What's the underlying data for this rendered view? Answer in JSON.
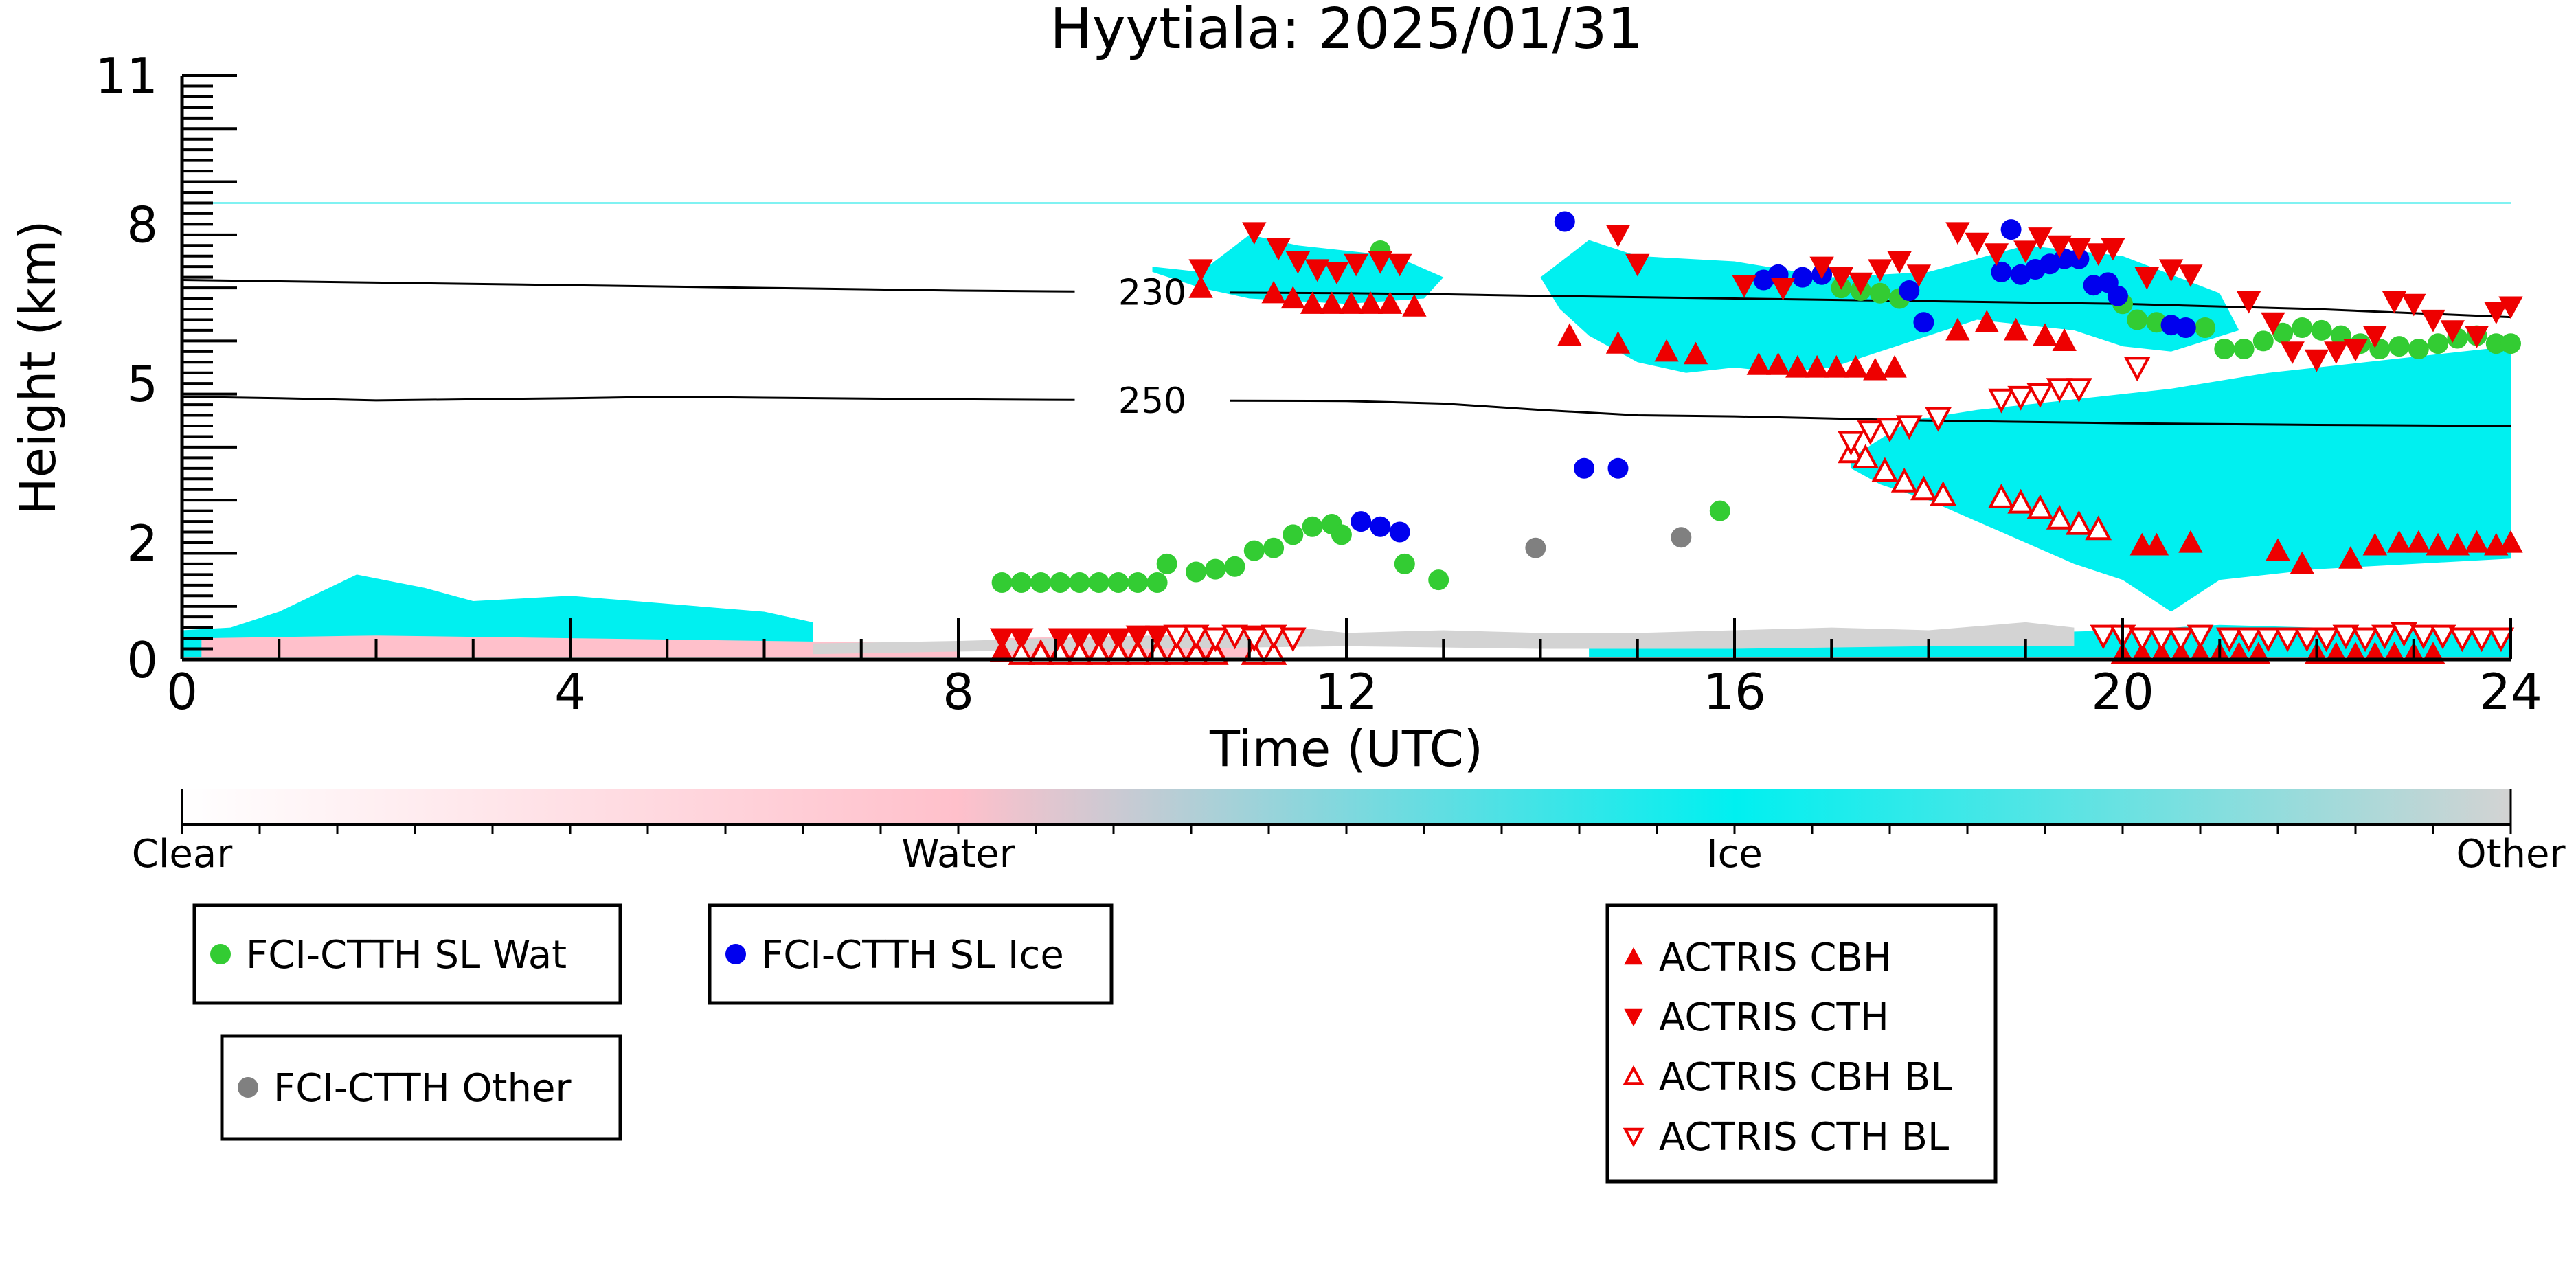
{
  "chart_data": {
    "type": "scatter",
    "title": "Hyytiala: 2025/01/31",
    "xlabel": "Time (UTC)",
    "ylabel": "Height (km)",
    "xlim": [
      0,
      24
    ],
    "ylim": [
      0,
      11
    ],
    "x_ticks": [
      0,
      4,
      8,
      12,
      16,
      20,
      24
    ],
    "y_tick_labels": [
      "0",
      "2",
      "5",
      "8",
      "11"
    ],
    "grid": false,
    "colors": {
      "wat": "#33cc33",
      "ice": "#0000ee",
      "other": "#808080",
      "actris": "#ee0000",
      "cloud_ice": "#00f0f0",
      "cloud_water": "#ffc0cb",
      "cloud_other": "#d3d3d3",
      "tropopause": "#00e5e5"
    },
    "tropopause_km": 8.6,
    "contours": [
      {
        "label": "230",
        "x": [
          0,
          2,
          4,
          6,
          8,
          10,
          12,
          13,
          14,
          16,
          18,
          20,
          22,
          24
        ],
        "y": [
          7.15,
          7.1,
          7.05,
          7.0,
          6.95,
          6.92,
          6.9,
          6.88,
          6.85,
          6.8,
          6.75,
          6.7,
          6.6,
          6.45
        ]
      },
      {
        "label": "250",
        "x": [
          0,
          1,
          2,
          4,
          5,
          6,
          8,
          10,
          12,
          13,
          14,
          15,
          16,
          18,
          20,
          22,
          24
        ],
        "y": [
          4.95,
          4.92,
          4.88,
          4.92,
          4.95,
          4.93,
          4.9,
          4.88,
          4.87,
          4.82,
          4.7,
          4.6,
          4.58,
          4.5,
          4.45,
          4.42,
          4.4
        ]
      }
    ],
    "cloud_classes": [
      "Clear",
      "Water",
      "Ice",
      "Other"
    ],
    "cloud_regions": [
      {
        "class": "Ice",
        "x": [
          0,
          0.5,
          1.0,
          1.8,
          2.5,
          3.0,
          4.0,
          5.0,
          6.0,
          6.5,
          6.5,
          6.0,
          5.0,
          4.0,
          3.0,
          2.0,
          1.0,
          0.5,
          0
        ],
        "y": [
          0.55,
          0.6,
          0.9,
          1.6,
          1.35,
          1.1,
          1.2,
          1.05,
          0.9,
          0.7,
          0.05,
          0.05,
          0.05,
          0.05,
          0.05,
          0.05,
          0.05,
          0.05,
          0.05
        ]
      },
      {
        "class": "Ice",
        "x": [
          10.0,
          10.5,
          11.0,
          11.5,
          12.0,
          12.5,
          13.0,
          12.8,
          12.0,
          11.0,
          10.5,
          10.0
        ],
        "y": [
          7.4,
          7.3,
          8.0,
          7.8,
          7.7,
          7.6,
          7.2,
          6.8,
          6.7,
          6.8,
          7.0,
          7.3
        ]
      },
      {
        "class": "Ice",
        "x": [
          14.0,
          14.5,
          15.0,
          16.0,
          17.0,
          18.0,
          19.0,
          20.0,
          21.0,
          21.2,
          20.5,
          20.0,
          19.5,
          19.0,
          18.5,
          18.0,
          17.5,
          17.0,
          16.5,
          16.0,
          15.5,
          15.0,
          14.5,
          14.2
        ],
        "y": [
          7.2,
          7.9,
          7.6,
          7.5,
          7.2,
          7.3,
          7.8,
          7.6,
          6.9,
          6.2,
          5.8,
          5.9,
          6.2,
          6.3,
          6.4,
          6.1,
          5.8,
          5.5,
          5.4,
          5.5,
          5.4,
          5.6,
          6.1,
          6.6
        ]
      },
      {
        "class": "Ice",
        "x": [
          17.2,
          17.8,
          18.5,
          19.5,
          20.5,
          21.5,
          22.5,
          23.5,
          24,
          24,
          23.0,
          22.0,
          21.5,
          21.0,
          20.5,
          20.0,
          19.5,
          19.0,
          18.5,
          18.0,
          17.5,
          17.2
        ],
        "y": [
          3.8,
          4.5,
          4.7,
          4.9,
          5.1,
          5.4,
          5.6,
          5.8,
          5.9,
          1.9,
          1.8,
          1.7,
          1.6,
          1.5,
          0.9,
          1.5,
          1.8,
          2.2,
          2.6,
          3.0,
          3.3,
          3.6
        ]
      },
      {
        "class": "Ice",
        "x": [
          14.5,
          16.0,
          18.0,
          20.0,
          21.0,
          22.0,
          24,
          24,
          22.0,
          20.0,
          18.0,
          16.0,
          14.5
        ],
        "y": [
          0.25,
          0.3,
          0.45,
          0.55,
          0.65,
          0.6,
          0.55,
          0.05,
          0.05,
          0.05,
          0.05,
          0.05,
          0.05
        ]
      },
      {
        "class": "Water",
        "x": [
          0.2,
          2.0,
          4.0,
          6.0,
          8.0,
          8.0,
          6.0,
          4.0,
          2.0,
          0.2
        ],
        "y": [
          0.4,
          0.45,
          0.4,
          0.35,
          0.3,
          0.05,
          0.05,
          0.05,
          0.05,
          0.05
        ]
      },
      {
        "class": "Water",
        "x": [
          8.4,
          10.0,
          11.0,
          11.0,
          10.0,
          8.4
        ],
        "y": [
          0.4,
          0.45,
          0.4,
          0.05,
          0.05,
          0.05
        ]
      },
      {
        "class": "Other",
        "x": [
          6.5,
          8.0,
          10.0,
          11.5,
          12.0,
          13.0,
          14.0,
          15.0,
          16.0,
          17.0,
          18.0,
          19.0,
          19.5,
          19.5,
          18.0,
          16.0,
          14.0,
          12.0,
          10.0,
          8.0,
          6.5
        ],
        "y": [
          0.3,
          0.35,
          0.45,
          0.6,
          0.5,
          0.55,
          0.5,
          0.5,
          0.55,
          0.6,
          0.55,
          0.7,
          0.6,
          0.25,
          0.25,
          0.2,
          0.2,
          0.25,
          0.2,
          0.15,
          0.1
        ]
      }
    ],
    "series": [
      {
        "name": "FCI-CTTH SL Wat",
        "marker": "circle-filled",
        "color": "#33cc33",
        "x": [
          8.45,
          8.65,
          8.85,
          9.05,
          9.25,
          9.45,
          9.65,
          9.85,
          10.05,
          10.15,
          10.45,
          10.65,
          10.85,
          11.05,
          11.25,
          11.45,
          11.65,
          11.85,
          11.95,
          12.35,
          12.6,
          12.95,
          15.85,
          17.1,
          17.3,
          17.5,
          17.7,
          20.0,
          20.15,
          20.35,
          20.85,
          21.05,
          21.25,
          21.45,
          21.65,
          21.85,
          22.05,
          22.25,
          22.45,
          22.65,
          22.85,
          23.05,
          23.25,
          23.45,
          23.65,
          23.85,
          24.0
        ],
        "y": [
          1.45,
          1.45,
          1.45,
          1.45,
          1.45,
          1.45,
          1.45,
          1.45,
          1.45,
          1.8,
          1.65,
          1.7,
          1.75,
          2.05,
          2.1,
          2.35,
          2.5,
          2.55,
          2.35,
          7.7,
          1.8,
          1.5,
          2.8,
          7.0,
          6.95,
          6.9,
          6.8,
          6.7,
          6.4,
          6.35,
          6.25,
          5.85,
          5.85,
          6.0,
          6.15,
          6.25,
          6.2,
          6.1,
          5.95,
          5.85,
          5.9,
          5.85,
          5.95,
          6.05,
          6.1,
          5.95,
          5.95
        ]
      },
      {
        "name": "FCI-CTTH SL Ice",
        "marker": "circle-filled",
        "color": "#0000ee",
        "x": [
          12.15,
          12.35,
          12.55,
          14.25,
          14.45,
          14.8,
          16.3,
          16.45,
          16.7,
          16.9,
          17.8,
          17.95,
          18.75,
          18.85,
          18.95,
          19.1,
          19.25,
          19.4,
          19.55,
          19.7,
          19.85,
          19.95,
          20.5,
          20.65
        ],
        "y": [
          2.6,
          2.5,
          2.4,
          8.25,
          3.6,
          3.6,
          7.15,
          7.25,
          7.2,
          7.25,
          6.95,
          6.35,
          7.3,
          8.1,
          7.25,
          7.35,
          7.45,
          7.55,
          7.55,
          7.05,
          7.1,
          6.85,
          6.3,
          6.25
        ]
      },
      {
        "name": "FCI-CTTH Other",
        "marker": "circle-filled",
        "color": "#808080",
        "x": [
          13.95,
          15.45
        ],
        "y": [
          2.1,
          2.3
        ]
      },
      {
        "name": "ACTRIS CBH",
        "marker": "triangle-up-filled",
        "color": "#ee0000",
        "x": [
          10.5,
          11.25,
          11.45,
          11.65,
          11.85,
          12.05,
          12.25,
          12.45,
          12.7,
          14.3,
          14.8,
          15.3,
          15.6,
          16.25,
          16.45,
          16.65,
          16.85,
          17.05,
          17.25,
          17.45,
          17.65,
          18.3,
          18.6,
          18.9,
          19.2,
          19.4,
          20.2,
          20.35,
          20.7,
          21.6,
          21.85,
          22.35,
          22.6,
          22.85,
          23.05,
          23.25,
          23.45,
          23.65,
          23.85,
          24.0,
          8.45,
          8.85,
          9.05,
          9.25,
          9.45,
          9.65,
          9.85,
          10.05,
          10.45,
          10.65,
          20.0,
          20.2,
          20.4,
          20.6,
          20.8,
          21.0,
          21.2,
          21.4,
          22.0,
          22.2,
          22.4,
          22.6,
          22.8,
          23.0,
          23.2
        ],
        "y": [
          7.0,
          6.9,
          6.8,
          6.7,
          6.7,
          6.7,
          6.7,
          6.7,
          6.65,
          6.1,
          5.95,
          5.8,
          5.75,
          5.55,
          5.55,
          5.5,
          5.5,
          5.5,
          5.5,
          5.45,
          5.5,
          6.2,
          6.35,
          6.2,
          6.1,
          6.0,
          2.15,
          2.15,
          2.2,
          2.05,
          1.8,
          1.9,
          2.15,
          2.2,
          2.2,
          2.15,
          2.15,
          2.2,
          2.15,
          2.2,
          0.15,
          0.15,
          0.15,
          0.15,
          0.15,
          0.15,
          0.15,
          0.15,
          0.15,
          0.15,
          0.1,
          0.1,
          0.1,
          0.1,
          0.1,
          0.1,
          0.1,
          0.1,
          0.1,
          0.1,
          0.1,
          0.1,
          0.1,
          0.1,
          0.1
        ]
      },
      {
        "name": "ACTRIS CTH",
        "marker": "triangle-down-filled",
        "color": "#ee0000",
        "x": [
          10.5,
          11.05,
          11.3,
          11.5,
          11.7,
          11.9,
          12.1,
          12.35,
          12.55,
          14.8,
          15.0,
          16.1,
          16.5,
          16.9,
          17.1,
          17.3,
          17.5,
          17.7,
          17.9,
          18.3,
          18.5,
          18.7,
          19.0,
          19.15,
          19.35,
          19.55,
          19.75,
          19.9,
          20.25,
          20.5,
          20.7,
          21.3,
          21.55,
          21.75,
          22.0,
          22.2,
          22.4,
          22.6,
          22.8,
          23.0,
          23.2,
          23.4,
          23.65,
          23.85,
          24.0,
          8.45,
          8.65,
          9.05,
          9.25,
          9.45,
          9.65,
          9.85,
          10.05,
          10.85,
          11.05
        ],
        "y": [
          7.35,
          8.05,
          7.75,
          7.5,
          7.35,
          7.3,
          7.45,
          7.5,
          7.45,
          8.0,
          7.45,
          7.05,
          7.0,
          7.4,
          7.2,
          7.1,
          7.35,
          7.5,
          7.25,
          8.05,
          7.85,
          7.65,
          7.7,
          7.95,
          7.8,
          7.75,
          7.65,
          7.75,
          7.2,
          7.35,
          7.25,
          6.75,
          6.35,
          5.8,
          5.65,
          5.8,
          5.85,
          6.1,
          6.75,
          6.7,
          6.4,
          6.2,
          6.1,
          6.55,
          6.65,
          0.4,
          0.4,
          0.4,
          0.4,
          0.4,
          0.4,
          0.45,
          0.45,
          0.45,
          0.45
        ]
      },
      {
        "name": "ACTRIS CBH BL",
        "marker": "triangle-up-open",
        "color": "#ee0000",
        "x": [
          17.2,
          17.35,
          17.55,
          17.75,
          17.95,
          18.15,
          18.75,
          18.95,
          19.15,
          19.35,
          19.55,
          19.75,
          8.65,
          8.85,
          9.05,
          9.25,
          9.45,
          9.65,
          9.85,
          10.05,
          10.25,
          10.45,
          10.65,
          11.05,
          11.25
        ],
        "y": [
          3.9,
          3.8,
          3.55,
          3.35,
          3.2,
          3.1,
          3.05,
          2.95,
          2.85,
          2.65,
          2.55,
          2.45,
          0.1,
          0.1,
          0.1,
          0.1,
          0.1,
          0.1,
          0.1,
          0.1,
          0.1,
          0.1,
          0.1,
          0.1,
          0.1
        ]
      },
      {
        "name": "ACTRIS CTH BL",
        "marker": "triangle-down-open",
        "color": "#ee0000",
        "x": [
          17.2,
          17.4,
          17.6,
          17.8,
          18.1,
          18.75,
          18.95,
          19.15,
          19.35,
          19.55,
          20.15,
          19.8,
          20.0,
          20.2,
          20.4,
          20.6,
          20.8,
          21.1,
          21.3,
          21.5,
          21.7,
          21.9,
          22.1,
          22.3,
          22.5,
          22.7,
          22.9,
          23.1,
          23.3,
          23.5,
          23.7,
          23.9,
          10.25,
          10.45,
          10.65,
          10.85,
          11.05,
          11.25,
          11.45
        ],
        "y": [
          4.1,
          4.3,
          4.35,
          4.4,
          4.55,
          4.9,
          4.95,
          5.0,
          5.1,
          5.1,
          5.5,
          0.45,
          0.45,
          0.4,
          0.4,
          0.4,
          0.45,
          0.4,
          0.4,
          0.4,
          0.4,
          0.4,
          0.4,
          0.45,
          0.4,
          0.45,
          0.5,
          0.45,
          0.45,
          0.4,
          0.4,
          0.4,
          0.45,
          0.45,
          0.4,
          0.45,
          0.4,
          0.45,
          0.4
        ]
      }
    ],
    "colorbar": {
      "labels": [
        "Clear",
        "Water",
        "Ice",
        "Other"
      ]
    },
    "legend_placement": "below",
    "legend_boxes": [
      {
        "entries": [
          "FCI-CTTH SL Wat"
        ]
      },
      {
        "entries": [
          "FCI-CTTH SL Ice"
        ]
      },
      {
        "entries": [
          "FCI-CTTH Other"
        ]
      },
      {
        "entries": [
          "ACTRIS CBH",
          "ACTRIS CTH",
          "ACTRIS CBH BL",
          "ACTRIS CTH BL"
        ]
      }
    ]
  }
}
